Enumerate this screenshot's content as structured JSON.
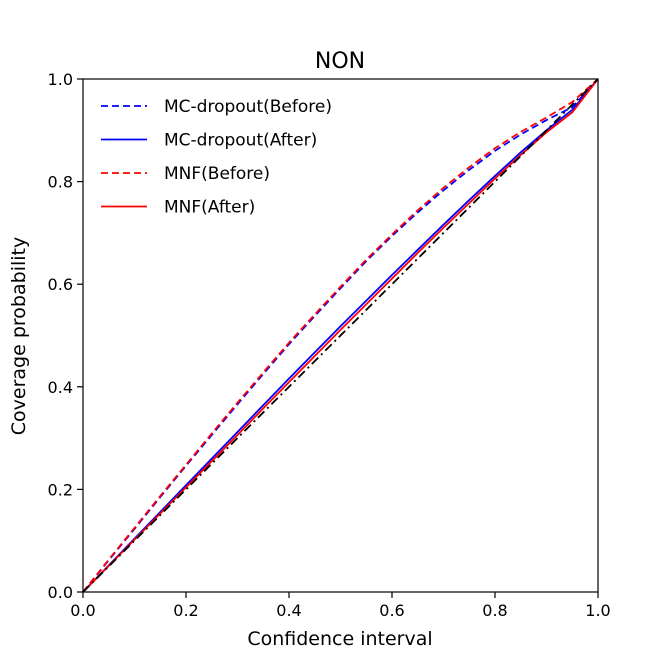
{
  "chart_data": {
    "type": "line",
    "title": "NON",
    "xlabel": "Confidence interval",
    "ylabel": "Coverage probability",
    "xlim": [
      0.0,
      1.0
    ],
    "ylim": [
      0.0,
      1.0
    ],
    "xticks": [
      "0.0",
      "0.2",
      "0.4",
      "0.6",
      "0.8",
      "1.0"
    ],
    "yticks": [
      "0.0",
      "0.2",
      "0.4",
      "0.6",
      "0.8",
      "1.0"
    ],
    "grid": false,
    "legend_position": "upper-left",
    "x": [
      0.0,
      0.05,
      0.1,
      0.15,
      0.2,
      0.25,
      0.3,
      0.35,
      0.4,
      0.45,
      0.5,
      0.55,
      0.6,
      0.65,
      0.7,
      0.75,
      0.8,
      0.85,
      0.9,
      0.95,
      1.0
    ],
    "series": [
      {
        "name": "MC-dropout(Before)",
        "color": "#0000ff",
        "style": "dashed",
        "values": [
          0.0,
          0.062,
          0.123,
          0.185,
          0.246,
          0.306,
          0.366,
          0.425,
          0.483,
          0.538,
          0.592,
          0.645,
          0.694,
          0.74,
          0.783,
          0.823,
          0.86,
          0.892,
          0.92,
          0.945,
          1.0
        ]
      },
      {
        "name": "MC-dropout(After)",
        "color": "#0000ff",
        "style": "solid",
        "values": [
          0.0,
          0.052,
          0.104,
          0.156,
          0.208,
          0.26,
          0.312,
          0.364,
          0.416,
          0.467,
          0.518,
          0.568,
          0.618,
          0.667,
          0.716,
          0.764,
          0.811,
          0.857,
          0.9,
          0.94,
          1.0
        ]
      },
      {
        "name": "MNF(Before)",
        "color": "#ff0000",
        "style": "dashed",
        "values": [
          0.0,
          0.063,
          0.125,
          0.187,
          0.248,
          0.309,
          0.369,
          0.428,
          0.486,
          0.541,
          0.595,
          0.648,
          0.697,
          0.744,
          0.788,
          0.828,
          0.865,
          0.897,
          0.925,
          0.955,
          1.0
        ]
      },
      {
        "name": "MNF(After)",
        "color": "#ff0000",
        "style": "solid",
        "values": [
          0.0,
          0.051,
          0.102,
          0.153,
          0.204,
          0.255,
          0.306,
          0.358,
          0.409,
          0.46,
          0.511,
          0.561,
          0.611,
          0.661,
          0.71,
          0.758,
          0.806,
          0.852,
          0.896,
          0.935,
          1.0
        ]
      },
      {
        "name": "",
        "color": "#000000",
        "style": "dashdot",
        "values": [
          0.0,
          0.05,
          0.1,
          0.15,
          0.2,
          0.25,
          0.3,
          0.35,
          0.4,
          0.45,
          0.5,
          0.55,
          0.6,
          0.65,
          0.7,
          0.75,
          0.8,
          0.85,
          0.9,
          0.95,
          1.0
        ]
      }
    ]
  }
}
